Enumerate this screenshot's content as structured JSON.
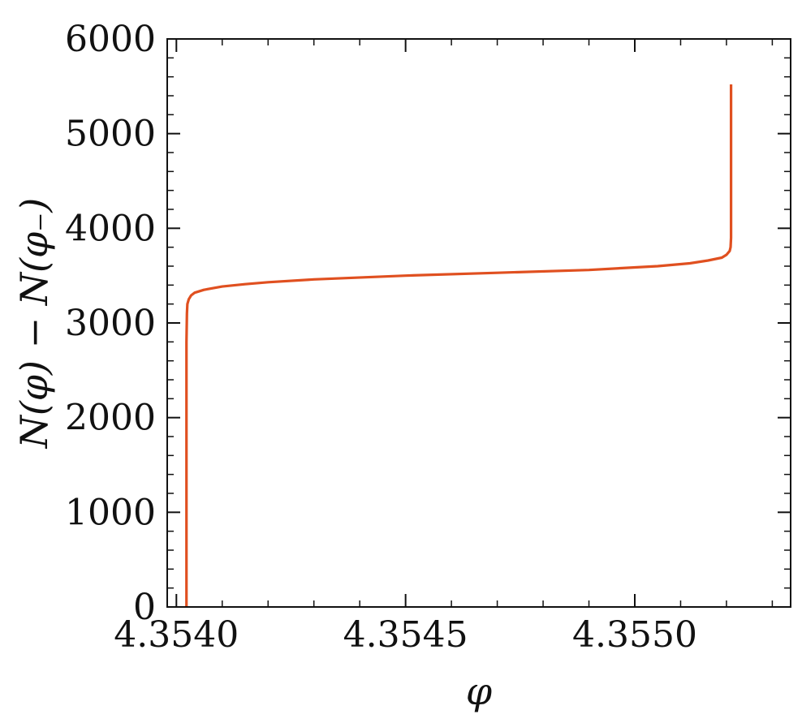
{
  "chart_data": {
    "type": "line",
    "title": "",
    "xlabel": "φ",
    "ylabel": "N(φ) − N(φ₋)",
    "xlim": [
      4.35398,
      4.35534
    ],
    "ylim": [
      0,
      6000
    ],
    "x_ticks": [
      {
        "value": 4.354,
        "label": "4.3540"
      },
      {
        "value": 4.3545,
        "label": "4.3545"
      },
      {
        "value": 4.355,
        "label": "4.3550"
      }
    ],
    "y_ticks": [
      {
        "value": 0,
        "label": "0"
      },
      {
        "value": 1000,
        "label": "1000"
      },
      {
        "value": 2000,
        "label": "2000"
      },
      {
        "value": 3000,
        "label": "3000"
      },
      {
        "value": 4000,
        "label": "4000"
      },
      {
        "value": 5000,
        "label": "5000"
      },
      {
        "value": 6000,
        "label": "6000"
      }
    ],
    "x_minor_step": 0.0001,
    "y_minor_step": 200,
    "grid": false,
    "line_color": "#e05020",
    "series": [
      {
        "x": [
          4.354022,
          4.354022,
          4.354022,
          4.354023,
          4.354024,
          4.354027,
          4.354032,
          4.35404,
          4.35406,
          4.3541,
          4.35415,
          4.3542,
          4.3543,
          4.3545,
          4.3547,
          4.3549,
          4.35505,
          4.35512,
          4.35516,
          4.35519,
          4.3552,
          4.355207,
          4.355209,
          4.35521,
          4.35521,
          4.35521
        ],
        "y": [
          0,
          1500,
          2800,
          3100,
          3200,
          3250,
          3290,
          3320,
          3350,
          3385,
          3410,
          3430,
          3460,
          3500,
          3530,
          3560,
          3600,
          3630,
          3660,
          3690,
          3720,
          3760,
          3800,
          3900,
          4500,
          5520
        ]
      }
    ]
  }
}
